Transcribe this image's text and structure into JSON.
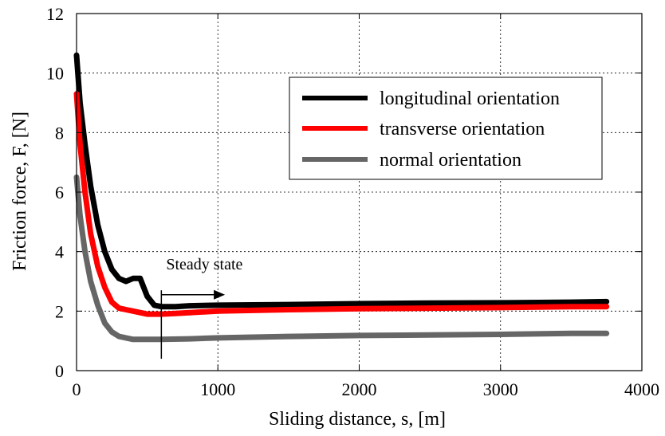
{
  "chart_data": {
    "type": "line",
    "xlabel": "Sliding distance, s, [m]",
    "ylabel": "Friction force, F, [N]",
    "xlim": [
      0,
      4000
    ],
    "ylim": [
      0,
      12
    ],
    "xticks": [
      0,
      1000,
      2000,
      3000,
      4000
    ],
    "yticks": [
      0,
      2,
      4,
      6,
      8,
      10,
      12
    ],
    "grid": true,
    "legend_position": "top-right",
    "series": [
      {
        "name": "longitudinal orientation",
        "color": "#000000",
        "x": [
          0,
          25,
          60,
          100,
          150,
          200,
          250,
          300,
          350,
          400,
          450,
          500,
          550,
          600,
          700,
          800,
          1000,
          1500,
          2000,
          2500,
          3000,
          3500,
          3750
        ],
        "y": [
          10.6,
          9.0,
          7.6,
          6.2,
          4.9,
          4.0,
          3.4,
          3.1,
          3.0,
          3.1,
          3.1,
          2.5,
          2.2,
          2.15,
          2.15,
          2.18,
          2.2,
          2.22,
          2.25,
          2.27,
          2.28,
          2.3,
          2.32
        ]
      },
      {
        "name": "transverse orientation",
        "color": "#ff0000",
        "x": [
          0,
          25,
          60,
          100,
          150,
          200,
          250,
          300,
          350,
          400,
          450,
          500,
          550,
          600,
          700,
          800,
          1000,
          1500,
          2000,
          2500,
          3000,
          3500,
          3750
        ],
        "y": [
          9.3,
          7.6,
          6.0,
          4.6,
          3.5,
          2.8,
          2.3,
          2.1,
          2.05,
          2.0,
          1.95,
          1.9,
          1.9,
          1.9,
          1.92,
          1.95,
          2.0,
          2.05,
          2.08,
          2.1,
          2.12,
          2.15,
          2.15
        ]
      },
      {
        "name": "normal orientation",
        "color": "#666666",
        "x": [
          0,
          25,
          60,
          100,
          150,
          200,
          250,
          300,
          350,
          400,
          450,
          500,
          600,
          800,
          1000,
          1500,
          2000,
          2500,
          3000,
          3500,
          3750
        ],
        "y": [
          6.5,
          5.2,
          4.0,
          3.0,
          2.2,
          1.6,
          1.3,
          1.15,
          1.1,
          1.05,
          1.05,
          1.05,
          1.05,
          1.07,
          1.1,
          1.15,
          1.18,
          1.2,
          1.22,
          1.25,
          1.25
        ]
      }
    ],
    "annotations": [
      {
        "text": "Steady state",
        "x": 600
      }
    ]
  }
}
